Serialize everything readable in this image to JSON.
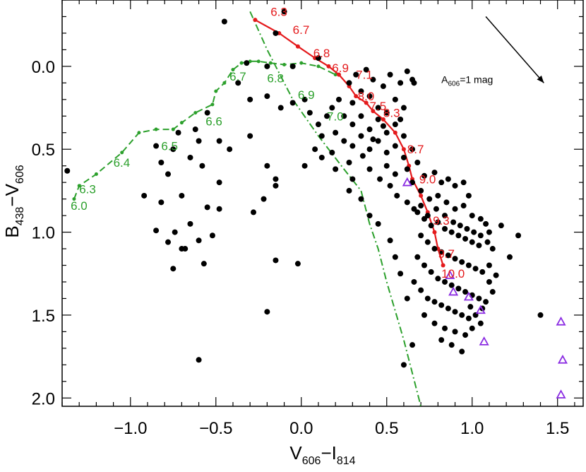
{
  "chart_data": {
    "type": "scatter",
    "xlabel": {
      "main": "V",
      "sub1": "606",
      "dash": "−I",
      "sub2": "814"
    },
    "ylabel": {
      "main": "B",
      "sub1": "438",
      "dash": "−V",
      "sub2": "606"
    },
    "xlim": [
      -1.4,
      1.65
    ],
    "ylim": [
      2.05,
      -0.4
    ],
    "x_ticks": [
      {
        "value": -1.0,
        "label": "−1.0"
      },
      {
        "value": -0.5,
        "label": "−0.5"
      },
      {
        "value": 0.0,
        "label": "0.0"
      },
      {
        "value": 0.5,
        "label": "0.5"
      },
      {
        "value": 1.0,
        "label": "1.0"
      },
      {
        "value": 1.5,
        "label": "1.5"
      }
    ],
    "y_ticks": [
      {
        "value": 0.0,
        "label": "0.0"
      },
      {
        "value": 0.5,
        "label": "0.5"
      },
      {
        "value": 1.0,
        "label": "1.0"
      },
      {
        "value": 1.5,
        "label": "1.5"
      },
      {
        "value": 2.0,
        "label": "2.0"
      }
    ],
    "stars": [
      [
        -0.45,
        -0.27
      ],
      [
        -0.1,
        -0.33
      ],
      [
        -0.15,
        -0.2
      ],
      [
        -0.32,
        -0.02
      ],
      [
        -0.2,
        0.0
      ],
      [
        -0.05,
        0.0
      ],
      [
        0.1,
        -0.05
      ],
      [
        -0.37,
        0.1
      ],
      [
        -0.55,
        0.28
      ],
      [
        -0.3,
        0.2
      ],
      [
        -0.2,
        0.18
      ],
      [
        -0.12,
        0.25
      ],
      [
        -0.05,
        0.22
      ],
      [
        0.02,
        0.2
      ],
      [
        -0.62,
        0.38
      ],
      [
        -0.72,
        0.4
      ],
      [
        -0.6,
        0.45
      ],
      [
        -0.48,
        0.45
      ],
      [
        -0.42,
        0.5
      ],
      [
        -0.3,
        0.42
      ],
      [
        -0.75,
        0.5
      ],
      [
        -0.85,
        0.48
      ],
      [
        -0.82,
        0.58
      ],
      [
        -0.65,
        0.55
      ],
      [
        -0.58,
        0.6
      ],
      [
        -0.78,
        0.65
      ],
      [
        -1.37,
        0.63
      ],
      [
        -0.92,
        0.78
      ],
      [
        -0.7,
        0.78
      ],
      [
        -0.48,
        0.7
      ],
      [
        -0.2,
        0.6
      ],
      [
        -0.15,
        0.68
      ],
      [
        -0.15,
        0.72
      ],
      [
        0.02,
        0.6
      ],
      [
        0.12,
        0.55
      ],
      [
        0.2,
        0.62
      ],
      [
        0.28,
        0.58
      ],
      [
        0.3,
        0.68
      ],
      [
        -0.48,
        0.86
      ],
      [
        -0.28,
        0.88
      ],
      [
        -0.22,
        0.8
      ],
      [
        -0.82,
        0.82
      ],
      [
        -0.74,
        1.0
      ],
      [
        -0.65,
        0.95
      ],
      [
        -0.55,
        0.85
      ],
      [
        -0.6,
        1.05
      ],
      [
        -0.7,
        1.1
      ],
      [
        -0.52,
        1.02
      ],
      [
        -0.78,
        1.06
      ],
      [
        -0.85,
        0.99
      ],
      [
        -0.68,
        1.1
      ],
      [
        -0.75,
        1.22
      ],
      [
        -0.57,
        1.19
      ],
      [
        -0.15,
        1.17
      ],
      [
        -0.02,
        1.19
      ],
      [
        -0.2,
        1.48
      ],
      [
        -0.6,
        1.77
      ],
      [
        0.28,
        0.75
      ],
      [
        0.35,
        0.8
      ],
      [
        0.4,
        0.9
      ],
      [
        0.45,
        0.95
      ],
      [
        0.52,
        1.05
      ],
      [
        0.55,
        1.15
      ],
      [
        0.58,
        1.25
      ],
      [
        0.62,
        1.4
      ],
      [
        0.65,
        1.68
      ],
      [
        0.6,
        1.8
      ],
      [
        0.28,
        0.1
      ],
      [
        0.32,
        0.05
      ],
      [
        0.38,
        0.02
      ],
      [
        0.42,
        0.08
      ],
      [
        0.48,
        0.12
      ],
      [
        0.52,
        0.05
      ],
      [
        0.58,
        0.1
      ],
      [
        0.62,
        0.03
      ],
      [
        0.66,
        0.1
      ],
      [
        0.3,
        0.22
      ],
      [
        0.35,
        0.15
      ],
      [
        0.4,
        0.18
      ],
      [
        0.45,
        0.25
      ],
      [
        0.5,
        0.28
      ],
      [
        0.55,
        0.2
      ],
      [
        0.6,
        0.25
      ],
      [
        0.25,
        0.3
      ],
      [
        0.3,
        0.35
      ],
      [
        0.35,
        0.3
      ],
      [
        0.4,
        0.38
      ],
      [
        0.45,
        0.32
      ],
      [
        0.5,
        0.4
      ],
      [
        0.55,
        0.35
      ],
      [
        0.6,
        0.42
      ],
      [
        0.2,
        0.4
      ],
      [
        0.25,
        0.45
      ],
      [
        0.3,
        0.48
      ],
      [
        0.35,
        0.42
      ],
      [
        0.4,
        0.5
      ],
      [
        0.45,
        0.45
      ],
      [
        0.5,
        0.52
      ],
      [
        0.55,
        0.48
      ],
      [
        0.6,
        0.55
      ],
      [
        0.65,
        0.5
      ],
      [
        0.15,
        0.3
      ],
      [
        0.18,
        0.25
      ],
      [
        0.22,
        0.2
      ],
      [
        0.1,
        0.35
      ],
      [
        0.05,
        0.28
      ],
      [
        0.12,
        0.42
      ],
      [
        0.08,
        0.5
      ],
      [
        0.18,
        0.52
      ],
      [
        0.5,
        0.6
      ],
      [
        0.55,
        0.65
      ],
      [
        0.62,
        0.62
      ],
      [
        0.68,
        0.58
      ],
      [
        0.72,
        0.66
      ],
      [
        0.78,
        0.64
      ],
      [
        0.82,
        0.7
      ],
      [
        0.86,
        0.68
      ],
      [
        0.9,
        0.72
      ],
      [
        0.95,
        0.7
      ],
      [
        0.98,
        0.78
      ],
      [
        0.65,
        0.7
      ],
      [
        0.7,
        0.75
      ],
      [
        0.75,
        0.8
      ],
      [
        0.8,
        0.78
      ],
      [
        0.85,
        0.82
      ],
      [
        0.9,
        0.86
      ],
      [
        0.95,
        0.84
      ],
      [
        1.0,
        0.9
      ],
      [
        1.05,
        0.92
      ],
      [
        1.08,
        0.95
      ],
      [
        0.68,
        0.88
      ],
      [
        0.72,
        0.92
      ],
      [
        0.76,
        0.96
      ],
      [
        0.8,
        0.94
      ],
      [
        0.84,
        0.98
      ],
      [
        0.88,
        1.0
      ],
      [
        0.92,
        1.02
      ],
      [
        0.96,
        1.04
      ],
      [
        1.0,
        1.06
      ],
      [
        1.04,
        1.08
      ],
      [
        1.1,
        1.0
      ],
      [
        1.12,
        1.1
      ],
      [
        0.7,
        1.02
      ],
      [
        0.74,
        1.06
      ],
      [
        0.78,
        1.1
      ],
      [
        0.82,
        1.12
      ],
      [
        0.86,
        1.14
      ],
      [
        0.9,
        1.16
      ],
      [
        0.94,
        1.18
      ],
      [
        0.98,
        1.2
      ],
      [
        1.02,
        1.22
      ],
      [
        1.06,
        1.24
      ],
      [
        1.1,
        1.2
      ],
      [
        0.68,
        1.15
      ],
      [
        0.72,
        1.2
      ],
      [
        0.76,
        1.24
      ],
      [
        0.8,
        1.28
      ],
      [
        0.84,
        1.3
      ],
      [
        0.88,
        1.32
      ],
      [
        0.92,
        1.34
      ],
      [
        0.96,
        1.36
      ],
      [
        1.0,
        1.38
      ],
      [
        1.04,
        1.4
      ],
      [
        1.08,
        1.42
      ],
      [
        1.12,
        1.36
      ],
      [
        0.66,
        1.3
      ],
      [
        0.7,
        1.35
      ],
      [
        0.74,
        1.4
      ],
      [
        0.78,
        1.42
      ],
      [
        0.82,
        1.44
      ],
      [
        0.86,
        1.46
      ],
      [
        0.9,
        1.48
      ],
      [
        0.94,
        1.5
      ],
      [
        0.98,
        1.52
      ],
      [
        1.02,
        1.5
      ],
      [
        1.06,
        1.46
      ],
      [
        0.72,
        1.5
      ],
      [
        0.78,
        1.55
      ],
      [
        0.84,
        1.58
      ],
      [
        0.9,
        1.6
      ],
      [
        0.96,
        1.62
      ],
      [
        1.0,
        1.58
      ],
      [
        0.88,
        1.68
      ],
      [
        0.94,
        1.72
      ],
      [
        0.82,
        1.65
      ],
      [
        1.27,
        1.02
      ],
      [
        1.22,
        1.15
      ],
      [
        1.17,
        0.96
      ],
      [
        1.4,
        1.5
      ],
      [
        1.05,
        1.55
      ],
      [
        0.99,
        1.45
      ],
      [
        1.1,
        1.3
      ],
      [
        1.14,
        1.26
      ],
      [
        0.65,
        0.08
      ],
      [
        0.58,
        0.32
      ],
      [
        0.48,
        0.36
      ],
      [
        0.42,
        0.44
      ],
      [
        0.36,
        0.54
      ],
      [
        0.4,
        0.62
      ],
      [
        0.46,
        0.68
      ],
      [
        0.52,
        0.72
      ],
      [
        0.56,
        0.78
      ],
      [
        0.62,
        0.82
      ],
      [
        0.66,
        0.86
      ],
      [
        0.7,
        0.84
      ],
      [
        0.74,
        0.9
      ],
      [
        0.79,
        0.86
      ],
      [
        0.84,
        0.9
      ],
      [
        0.89,
        0.94
      ],
      [
        0.93,
        0.96
      ],
      [
        0.97,
        0.98
      ],
      [
        1.01,
        1.0
      ],
      [
        1.05,
        1.02
      ],
      [
        1.09,
        1.06
      ]
    ],
    "triangles": [
      [
        0.62,
        0.7
      ],
      [
        0.87,
        1.26
      ],
      [
        0.89,
        1.36
      ],
      [
        0.98,
        1.39
      ],
      [
        1.05,
        1.47
      ],
      [
        1.07,
        1.66
      ],
      [
        1.52,
        1.54
      ],
      [
        1.53,
        1.77
      ],
      [
        1.52,
        1.98
      ]
    ],
    "red_isochrone": {
      "points": [
        [
          -0.27,
          -0.28
        ],
        [
          -0.13,
          -0.2
        ],
        [
          -0.02,
          -0.12
        ],
        [
          0.08,
          -0.05
        ],
        [
          0.16,
          0.0
        ],
        [
          0.22,
          0.05
        ],
        [
          0.28,
          0.12
        ],
        [
          0.32,
          0.18
        ],
        [
          0.38,
          0.22
        ],
        [
          0.42,
          0.27
        ],
        [
          0.48,
          0.32
        ],
        [
          0.55,
          0.4
        ],
        [
          0.6,
          0.5
        ],
        [
          0.63,
          0.6
        ],
        [
          0.65,
          0.68
        ],
        [
          0.7,
          0.78
        ],
        [
          0.74,
          0.88
        ],
        [
          0.78,
          1.0
        ],
        [
          0.8,
          1.1
        ],
        [
          0.83,
          1.2
        ]
      ],
      "labels": [
        {
          "text": "6.3",
          "x": -0.18,
          "y": -0.33
        },
        {
          "text": "6.7",
          "x": -0.05,
          "y": -0.22
        },
        {
          "text": "6.8",
          "x": 0.07,
          "y": -0.08
        },
        {
          "text": "6.9",
          "x": 0.18,
          "y": 0.01
        },
        {
          "text": "7.1",
          "x": 0.32,
          "y": 0.05
        },
        {
          "text": "8.0",
          "x": 0.33,
          "y": 0.18
        },
        {
          "text": "7.5",
          "x": 0.4,
          "y": 0.24
        },
        {
          "text": "8.3",
          "x": 0.48,
          "y": 0.28
        },
        {
          "text": "8.7",
          "x": 0.62,
          "y": 0.5
        },
        {
          "text": "9.0",
          "x": 0.69,
          "y": 0.68
        },
        {
          "text": "9.3",
          "x": 0.77,
          "y": 0.93
        },
        {
          "text": "9.7",
          "x": 0.8,
          "y": 1.13
        },
        {
          "text": "10.0",
          "x": 0.82,
          "y": 1.25
        }
      ]
    },
    "green_isochrone": {
      "points": [
        [
          -1.33,
          0.8
        ],
        [
          -1.3,
          0.72
        ],
        [
          -1.2,
          0.65
        ],
        [
          -1.05,
          0.52
        ],
        [
          -0.95,
          0.4
        ],
        [
          -0.85,
          0.38
        ],
        [
          -0.75,
          0.38
        ],
        [
          -0.7,
          0.34
        ],
        [
          -0.62,
          0.28
        ],
        [
          -0.52,
          0.23
        ],
        [
          -0.5,
          0.15
        ],
        [
          -0.45,
          0.1
        ],
        [
          -0.4,
          0.02
        ],
        [
          -0.35,
          -0.02
        ],
        [
          -0.3,
          -0.03
        ],
        [
          -0.25,
          -0.03
        ],
        [
          -0.18,
          -0.02
        ],
        [
          -0.1,
          -0.01
        ],
        [
          0.0,
          -0.02
        ],
        [
          0.1,
          0.0
        ],
        [
          0.2,
          0.05
        ]
      ],
      "labels": [
        {
          "text": "6.0",
          "x": -1.35,
          "y": 0.84
        },
        {
          "text": "6.3",
          "x": -1.3,
          "y": 0.74
        },
        {
          "text": "6.4",
          "x": -1.1,
          "y": 0.58
        },
        {
          "text": "6.5",
          "x": -0.82,
          "y": 0.48
        },
        {
          "text": "6.6",
          "x": -0.56,
          "y": 0.33
        },
        {
          "text": "6.7",
          "x": -0.42,
          "y": 0.06
        },
        {
          "text": "6.8",
          "x": -0.2,
          "y": 0.07
        },
        {
          "text": "6.9",
          "x": -0.02,
          "y": 0.17
        },
        {
          "text": "7.0",
          "x": 0.15,
          "y": 0.3
        }
      ]
    },
    "green_dashdot": [
      [
        -0.3,
        -0.33
      ],
      [
        -0.2,
        -0.1
      ],
      [
        -0.05,
        0.2
      ],
      [
        0.1,
        0.42
      ],
      [
        0.25,
        0.62
      ],
      [
        0.35,
        0.75
      ],
      [
        0.4,
        0.95
      ],
      [
        0.45,
        1.1
      ],
      [
        0.5,
        1.3
      ],
      [
        0.6,
        1.65
      ],
      [
        0.7,
        2.05
      ]
    ],
    "annotation": {
      "text_main": "A",
      "text_sub": "606",
      "text_rest": "=1 mag",
      "text_x": 0.82,
      "text_y": 0.08,
      "arrow_from": [
        1.08,
        -0.3
      ],
      "arrow_to": [
        1.42,
        0.1
      ]
    },
    "colors": {
      "stars": "#000000",
      "triangles": "#8a2be2",
      "red_isochrone": "#e41a1c",
      "green_isochrone": "#2ca02c",
      "axes": "#000000"
    }
  }
}
